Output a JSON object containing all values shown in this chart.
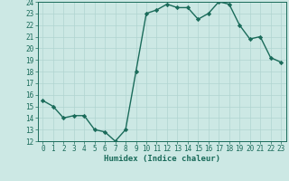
{
  "xlabel": "Humidex (Indice chaleur)",
  "x": [
    0,
    1,
    2,
    3,
    4,
    5,
    6,
    7,
    8,
    9,
    10,
    11,
    12,
    13,
    14,
    15,
    16,
    17,
    18,
    19,
    20,
    21,
    22,
    23
  ],
  "y": [
    15.5,
    15.0,
    14.0,
    14.2,
    14.2,
    13.0,
    12.8,
    12.0,
    13.0,
    18.0,
    23.0,
    23.3,
    23.8,
    23.5,
    23.5,
    22.5,
    23.0,
    24.0,
    23.8,
    22.0,
    20.8,
    21.0,
    19.2,
    18.8
  ],
  "line_color": "#1a6b5a",
  "bg_color": "#cce8e4",
  "grid_color": "#b0d4d0",
  "ylim": [
    12,
    24
  ],
  "xlim": [
    -0.5,
    23.5
  ],
  "yticks": [
    12,
    13,
    14,
    15,
    16,
    17,
    18,
    19,
    20,
    21,
    22,
    23,
    24
  ],
  "xticks": [
    0,
    1,
    2,
    3,
    4,
    5,
    6,
    7,
    8,
    9,
    10,
    11,
    12,
    13,
    14,
    15,
    16,
    17,
    18,
    19,
    20,
    21,
    22,
    23
  ],
  "marker": "D",
  "marker_size": 2.2,
  "line_width": 1.0,
  "tick_fontsize": 5.5,
  "xlabel_fontsize": 6.5
}
